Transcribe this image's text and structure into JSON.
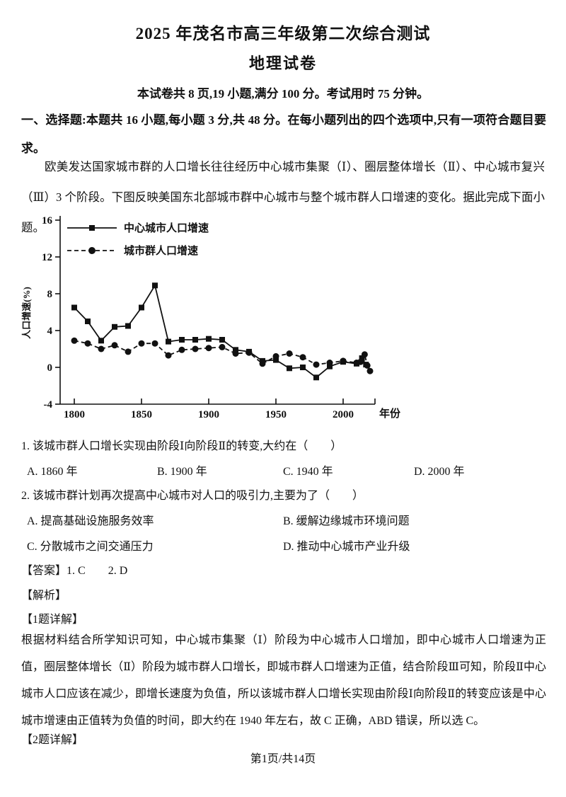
{
  "page": {
    "title": "2025 年茂名市高三年级第二次综合测试",
    "subtitle": "地理试卷",
    "exam_info": "本试卷共 8 页,19 小题,满分 100 分。考试用时 75 分钟。",
    "section_header": "一、选择题:本题共 16 小题,每小题 3 分,共 48 分。在每小题列出的四个选项中,只有一项符合题目要求。",
    "intro": "欧美发达国家城市群的人口增长往往经历中心城市集聚（Ⅰ）、圈层整体增长（Ⅱ）、中心城市复兴（Ⅲ）3 个阶段。下图反映美国东北部城市群中心城市与整个城市群人口增速的变化。据此完成下面小题。",
    "footer": "第1页/共14页"
  },
  "questions": [
    {
      "stem": "1. 该城市群人口增长实现由阶段Ⅰ向阶段Ⅱ的转变,大约在（　　）",
      "options": [
        "A. 1860 年",
        "B. 1900 年",
        "C. 1940 年",
        "D. 2000 年"
      ]
    },
    {
      "stem": "2. 该城市群计划再次提高中心城市对人口的吸引力,主要为了（　　）",
      "options": [
        "A. 提高基础设施服务效率",
        "B. 缓解边缘城市环境问题",
        "C. 分散城市之间交通压力",
        "D. 推动中心城市产业升级"
      ]
    }
  ],
  "answers": {
    "label": "【答案】",
    "text": "1. C　　2. D"
  },
  "analysis": {
    "header": "【解析】",
    "q1_header": "【1题详解】",
    "q1_text": "根据材料结合所学知识可知，中心城市集聚（Ⅰ）阶段为中心城市人口增加，即中心城市人口增速为正值，圈层整体增长（Ⅱ）阶段为城市群人口增长，即城市群人口增速为正值，结合阶段Ⅲ可知，阶段Ⅱ中心城市人口应该在减少，即增长速度为负值，所以该城市群人口增长实现由阶段Ⅰ向阶段Ⅱ的转变应该是中心城市增速由正值转为负值的时间，即大约在 1940 年左右，故 C 正确，ABD 错误，所以选 C。",
    "q2_header": "【2题详解】"
  },
  "chart_data": {
    "type": "line",
    "title": "",
    "xlabel": "年份",
    "ylabel": "人口增速(%)",
    "ylim": [
      -4,
      16
    ],
    "yticks": [
      16,
      12,
      8,
      4,
      0,
      -4
    ],
    "xticks": [
      1800,
      1850,
      1900,
      1950,
      2000
    ],
    "xlim": [
      1790,
      2024
    ],
    "grid": false,
    "legend_position": "top-left-inside",
    "line_color": "#111111",
    "series": [
      {
        "name": "中心城市人口增速",
        "marker": "square",
        "line": "solid",
        "points": [
          [
            1800,
            6.5
          ],
          [
            1810,
            5.0
          ],
          [
            1820,
            2.9
          ],
          [
            1830,
            4.4
          ],
          [
            1840,
            4.5
          ],
          [
            1850,
            6.5
          ],
          [
            1860,
            8.9
          ],
          [
            1870,
            2.8
          ],
          [
            1880,
            3.0
          ],
          [
            1890,
            3.0
          ],
          [
            1900,
            3.1
          ],
          [
            1910,
            3.0
          ],
          [
            1920,
            1.9
          ],
          [
            1930,
            1.7
          ],
          [
            1940,
            0.7
          ],
          [
            1950,
            0.8
          ],
          [
            1960,
            -0.1
          ],
          [
            1970,
            0.0
          ],
          [
            1980,
            -1.1
          ],
          [
            1990,
            0.1
          ],
          [
            2000,
            0.6
          ],
          [
            2010,
            0.4
          ],
          [
            2014,
            1.0
          ],
          [
            2017,
            0.3
          ]
        ]
      },
      {
        "name": "城市群人口增速",
        "marker": "circle",
        "line": "dashed",
        "points": [
          [
            1800,
            2.9
          ],
          [
            1810,
            2.6
          ],
          [
            1820,
            2.0
          ],
          [
            1830,
            2.4
          ],
          [
            1840,
            1.7
          ],
          [
            1850,
            2.6
          ],
          [
            1860,
            2.6
          ],
          [
            1870,
            1.3
          ],
          [
            1880,
            1.9
          ],
          [
            1890,
            2.0
          ],
          [
            1900,
            2.1
          ],
          [
            1910,
            2.2
          ],
          [
            1920,
            1.5
          ],
          [
            1930,
            1.6
          ],
          [
            1940,
            0.4
          ],
          [
            1950,
            1.2
          ],
          [
            1960,
            1.5
          ],
          [
            1970,
            1.1
          ],
          [
            1980,
            0.3
          ],
          [
            1990,
            0.5
          ],
          [
            2000,
            0.7
          ],
          [
            2010,
            0.5
          ],
          [
            2013,
            0.6
          ],
          [
            2016,
            1.4
          ],
          [
            2018,
            0.2
          ],
          [
            2020,
            -0.4
          ]
        ]
      }
    ]
  }
}
